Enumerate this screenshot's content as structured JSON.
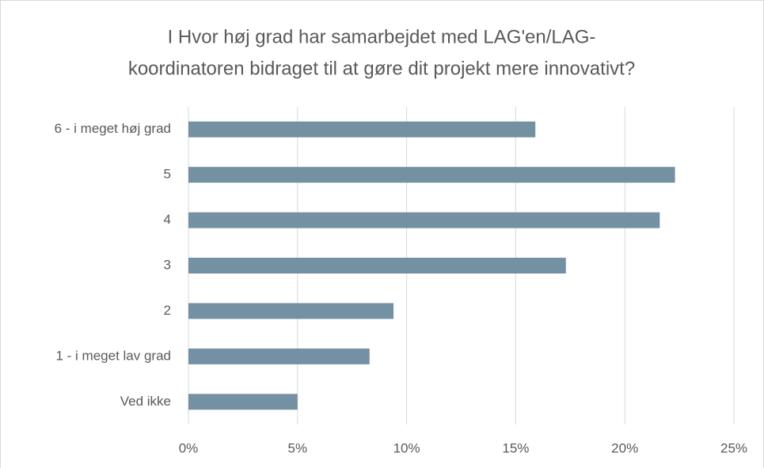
{
  "chart_data": {
    "type": "bar",
    "orientation": "horizontal",
    "title": [
      "I Hvor høj grad har samarbejdet med LAG'en/LAG-",
      "koordinatoren bidraget til at gøre dit projekt mere innovativt?"
    ],
    "categories": [
      "6 - i meget høj grad",
      "5",
      "4",
      "3",
      "2",
      "1 - i meget lav grad",
      "Ved ikke"
    ],
    "values": [
      15.9,
      22.3,
      21.6,
      17.3,
      9.4,
      8.3,
      5.0
    ],
    "color": "#7490a3",
    "xlim": [
      0,
      25
    ],
    "xticks": [
      {
        "value": 0,
        "label": "0%"
      },
      {
        "value": 5,
        "label": "5%"
      },
      {
        "value": 10,
        "label": "10%"
      },
      {
        "value": 15,
        "label": "15%"
      },
      {
        "value": 20,
        "label": "20%"
      },
      {
        "value": 25,
        "label": "25%"
      }
    ],
    "grid": true
  }
}
